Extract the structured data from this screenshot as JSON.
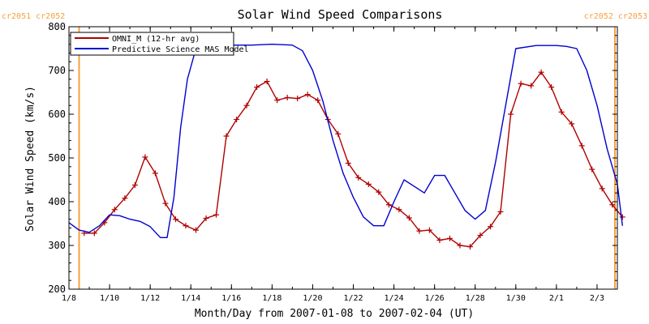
{
  "chart_data": {
    "type": "line",
    "title": "Solar Wind Speed Comparisons",
    "xlabel": "Month/Day from 2007-01-08 to 2007-02-04 (UT)",
    "ylabel": "Solar Wind Speed (km/s)",
    "xlim": [
      "2007-01-08",
      "2007-02-04"
    ],
    "ylim": [
      200,
      800
    ],
    "yticks": [
      200,
      300,
      400,
      500,
      600,
      700,
      800
    ],
    "xticks": [
      {
        "label": "1/8",
        "date": "2007-01-08"
      },
      {
        "label": "1/10",
        "date": "2007-01-10"
      },
      {
        "label": "1/12",
        "date": "2007-01-12"
      },
      {
        "label": "1/14",
        "date": "2007-01-14"
      },
      {
        "label": "1/16",
        "date": "2007-01-16"
      },
      {
        "label": "1/18",
        "date": "2007-01-18"
      },
      {
        "label": "1/20",
        "date": "2007-01-20"
      },
      {
        "label": "1/22",
        "date": "2007-01-22"
      },
      {
        "label": "1/24",
        "date": "2007-01-24"
      },
      {
        "label": "1/26",
        "date": "2007-01-26"
      },
      {
        "label": "1/28",
        "date": "2007-01-28"
      },
      {
        "label": "1/30",
        "date": "2007-01-30"
      },
      {
        "label": "2/1",
        "date": "2007-02-01"
      },
      {
        "label": "2/3",
        "date": "2007-02-03"
      }
    ],
    "grid": false,
    "legend": "top-left",
    "carrington_markers": [
      {
        "date": "2007-01-08 12:00",
        "left_label": "cr2051",
        "right_label": "cr2052",
        "position": "left"
      },
      {
        "date": "2007-02-04",
        "left_label": "cr2052",
        "right_label": "cr2053",
        "position": "right"
      }
    ],
    "marker_color": "#f5a040",
    "series": [
      {
        "name": "OMNI_M (12-hr avg)",
        "color": "#b00000",
        "marker": "plus",
        "x": [
          "2007-01-08 18:00",
          "2007-01-09 06:00",
          "2007-01-09 18:00",
          "2007-01-10 06:00",
          "2007-01-10 18:00",
          "2007-01-11 06:00",
          "2007-01-11 18:00",
          "2007-01-12 06:00",
          "2007-01-12 18:00",
          "2007-01-13 06:00",
          "2007-01-13 18:00",
          "2007-01-14 06:00",
          "2007-01-14 18:00",
          "2007-01-15 06:00",
          "2007-01-15 18:00",
          "2007-01-16 06:00",
          "2007-01-16 18:00",
          "2007-01-17 06:00",
          "2007-01-17 18:00",
          "2007-01-18 06:00",
          "2007-01-18 18:00",
          "2007-01-19 06:00",
          "2007-01-19 18:00",
          "2007-01-20 06:00",
          "2007-01-20 18:00",
          "2007-01-21 06:00",
          "2007-01-21 18:00",
          "2007-01-22 06:00",
          "2007-01-22 18:00",
          "2007-01-23 06:00",
          "2007-01-23 18:00",
          "2007-01-24 06:00",
          "2007-01-24 18:00",
          "2007-01-25 06:00",
          "2007-01-25 18:00",
          "2007-01-26 06:00",
          "2007-01-26 18:00",
          "2007-01-27 06:00",
          "2007-01-27 18:00",
          "2007-01-28 06:00",
          "2007-01-28 18:00",
          "2007-01-29 06:00",
          "2007-01-29 18:00",
          "2007-01-30 06:00",
          "2007-01-30 18:00",
          "2007-01-31 06:00",
          "2007-01-31 18:00",
          "2007-02-01 06:00",
          "2007-02-01 18:00",
          "2007-02-02 06:00",
          "2007-02-02 18:00",
          "2007-02-03 06:00",
          "2007-02-03 18:00",
          "2007-02-04 06:00"
        ],
        "values": [
          328,
          328,
          352,
          382,
          408,
          438,
          502,
          465,
          396,
          360,
          345,
          335,
          362,
          370,
          550,
          588,
          620,
          662,
          675,
          632,
          638,
          636,
          645,
          632,
          588,
          555,
          488,
          455,
          440,
          422,
          393,
          382,
          363,
          333,
          335,
          312,
          316,
          300,
          297,
          323,
          343,
          377,
          600,
          670,
          665,
          696,
          662,
          605,
          578,
          528,
          474,
          430,
          393,
          365
        ]
      },
      {
        "name": "Predictive Science MAS Model",
        "color": "#0000d0",
        "marker": "none",
        "x": [
          "2007-01-08 00:00",
          "2007-01-08 12:00",
          "2007-01-09 00:00",
          "2007-01-09 12:00",
          "2007-01-10 00:00",
          "2007-01-10 12:00",
          "2007-01-11 00:00",
          "2007-01-11 12:00",
          "2007-01-12 00:00",
          "2007-01-12 12:00",
          "2007-01-12 20:00",
          "2007-01-13 04:00",
          "2007-01-13 12:00",
          "2007-01-13 20:00",
          "2007-01-14 06:00",
          "2007-01-14 18:00",
          "2007-01-15 06:00",
          "2007-01-16 00:00",
          "2007-01-17 00:00",
          "2007-01-18 00:00",
          "2007-01-19 00:00",
          "2007-01-19 12:00",
          "2007-01-20 00:00",
          "2007-01-20 12:00",
          "2007-01-21 00:00",
          "2007-01-21 12:00",
          "2007-01-22 00:00",
          "2007-01-22 12:00",
          "2007-01-23 00:00",
          "2007-01-23 12:00",
          "2007-01-24 00:00",
          "2007-01-24 12:00",
          "2007-01-25 00:00",
          "2007-01-25 12:00",
          "2007-01-26 00:00",
          "2007-01-26 12:00",
          "2007-01-27 00:00",
          "2007-01-27 12:00",
          "2007-01-28 00:00",
          "2007-01-28 12:00",
          "2007-01-29 00:00",
          "2007-01-30 00:00",
          "2007-01-31 00:00",
          "2007-02-01 00:00",
          "2007-02-01 12:00",
          "2007-02-02 00:00",
          "2007-02-02 12:00",
          "2007-02-03 00:00",
          "2007-02-03 12:00",
          "2007-02-04 00:00",
          "2007-02-04 06:00"
        ],
        "values": [
          352,
          335,
          330,
          345,
          370,
          368,
          360,
          355,
          343,
          318,
          318,
          410,
          570,
          680,
          750,
          757,
          758,
          758,
          758,
          760,
          758,
          745,
          700,
          630,
          540,
          465,
          410,
          365,
          345,
          345,
          400,
          450,
          435,
          420,
          460,
          460,
          420,
          380,
          360,
          380,
          490,
          750,
          757,
          757,
          755,
          750,
          700,
          620,
          520,
          440,
          345
        ]
      }
    ]
  }
}
